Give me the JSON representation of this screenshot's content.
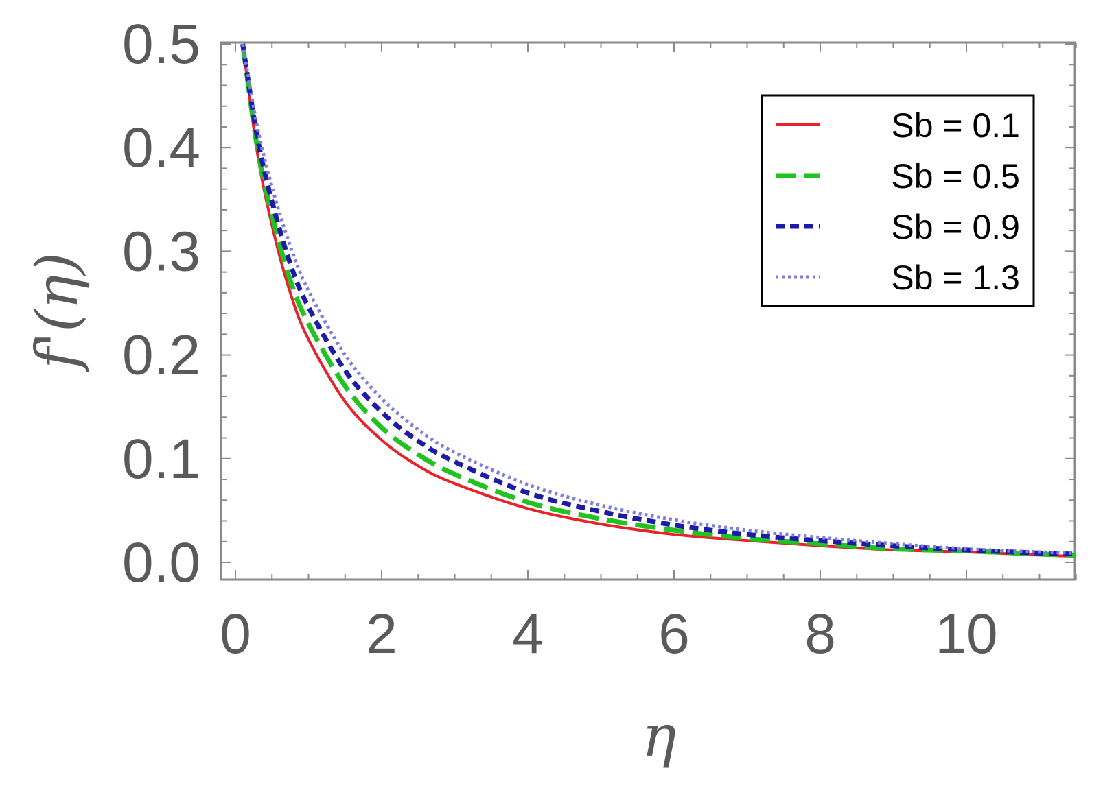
{
  "chart_data": {
    "type": "line",
    "title": "",
    "xlabel": "η",
    "ylabel": "f'(η)",
    "xlim": [
      0,
      11.5
    ],
    "ylim": [
      0,
      0.5
    ],
    "xticks": [
      "0",
      "2",
      "4",
      "6",
      "8",
      "10"
    ],
    "xtick_values": [
      0,
      2,
      4,
      6,
      8,
      10
    ],
    "yticks": [
      "0.0",
      "0.1",
      "0.2",
      "0.3",
      "0.4",
      "0.5"
    ],
    "ytick_values": [
      0,
      0.1,
      0.2,
      0.3,
      0.4,
      0.5
    ],
    "grid": false,
    "legend_position": "top-right",
    "x": [
      0.1,
      0.3,
      0.5,
      0.75,
      1,
      1.5,
      2,
      2.5,
      3,
      4,
      5,
      6,
      7,
      8,
      9,
      10,
      11,
      11.5
    ],
    "series": [
      {
        "name": "Sb = 0.1",
        "color": "#e8212a",
        "dash": "solid",
        "values": [
          0.5,
          0.395,
          0.325,
          0.26,
          0.215,
          0.155,
          0.118,
          0.093,
          0.076,
          0.052,
          0.037,
          0.027,
          0.021,
          0.016,
          0.012,
          0.01,
          0.007,
          0.006
        ]
      },
      {
        "name": "Sb = 0.5",
        "color": "#21c221",
        "dash": "long-dash",
        "values": [
          0.5,
          0.4,
          0.335,
          0.272,
          0.23,
          0.17,
          0.13,
          0.104,
          0.085,
          0.058,
          0.042,
          0.031,
          0.023,
          0.018,
          0.013,
          0.011,
          0.008,
          0.007
        ]
      },
      {
        "name": "Sb = 0.9",
        "color": "#1c1ca8",
        "dash": "short-dash",
        "values": [
          0.5,
          0.41,
          0.348,
          0.288,
          0.246,
          0.185,
          0.145,
          0.117,
          0.097,
          0.067,
          0.049,
          0.036,
          0.027,
          0.021,
          0.016,
          0.012,
          0.009,
          0.008
        ]
      },
      {
        "name": "Sb = 1.3",
        "color": "#7d7de0",
        "dash": "dotted",
        "values": [
          0.5,
          0.42,
          0.362,
          0.305,
          0.262,
          0.2,
          0.158,
          0.128,
          0.106,
          0.075,
          0.055,
          0.041,
          0.031,
          0.024,
          0.018,
          0.013,
          0.01,
          0.009
        ]
      }
    ]
  }
}
